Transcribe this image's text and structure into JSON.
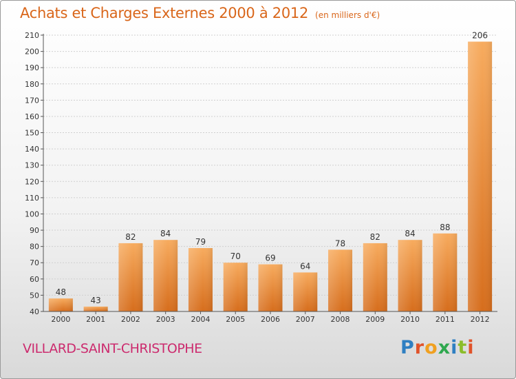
{
  "header": {
    "title": "Achats et Charges Externes 2000 à 2012",
    "subtitle": "(en milliers d'€)"
  },
  "footer": {
    "place": "VILLARD-SAINT-CHRISTOPHE",
    "logo": [
      "P",
      "r",
      "o",
      "x",
      "i",
      "t",
      "i"
    ]
  },
  "colors": {
    "title": "#d9661a",
    "place": "#cc2b6e",
    "bar_light": "#f5a65a",
    "bar_dark": "#d9701f",
    "axis": "#555555",
    "grid": "#cfcfcf"
  },
  "chart_data": {
    "type": "bar",
    "title": "Achats et Charges Externes 2000 à 2012",
    "unit": "(en milliers d'€)",
    "categories": [
      "2000",
      "2001",
      "2002",
      "2003",
      "2004",
      "2005",
      "2006",
      "2007",
      "2008",
      "2009",
      "2010",
      "2011",
      "2012"
    ],
    "values": [
      48,
      43,
      82,
      84,
      79,
      70,
      69,
      64,
      78,
      82,
      84,
      88,
      206
    ],
    "ylim": [
      40,
      210
    ],
    "ytick_step": 10,
    "grid": true,
    "xlabel": "",
    "ylabel": ""
  }
}
